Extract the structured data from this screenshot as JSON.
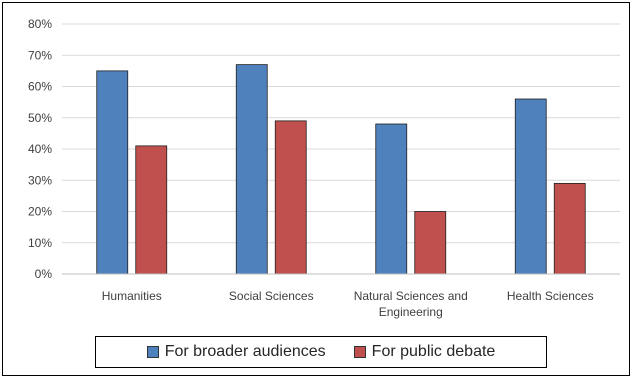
{
  "chart_data": {
    "type": "bar",
    "title": "",
    "xlabel": "",
    "ylabel": "",
    "categories": [
      [
        "Humanities"
      ],
      [
        "Social Sciences"
      ],
      [
        "Natural Sciences and",
        "Engineering"
      ],
      [
        "Health Sciences"
      ]
    ],
    "series": [
      {
        "name": "For broader audiences",
        "color": "#4f81bd",
        "values": [
          65,
          67,
          48,
          56
        ]
      },
      {
        "name": "For public debate",
        "color": "#c0504d",
        "values": [
          41,
          49,
          20,
          29
        ]
      }
    ],
    "ylim": [
      0,
      80
    ],
    "yticks": [
      "0%",
      "10%",
      "20%",
      "30%",
      "40%",
      "50%",
      "60%",
      "70%",
      "80%"
    ],
    "grid": true,
    "legend_position": "bottom"
  }
}
